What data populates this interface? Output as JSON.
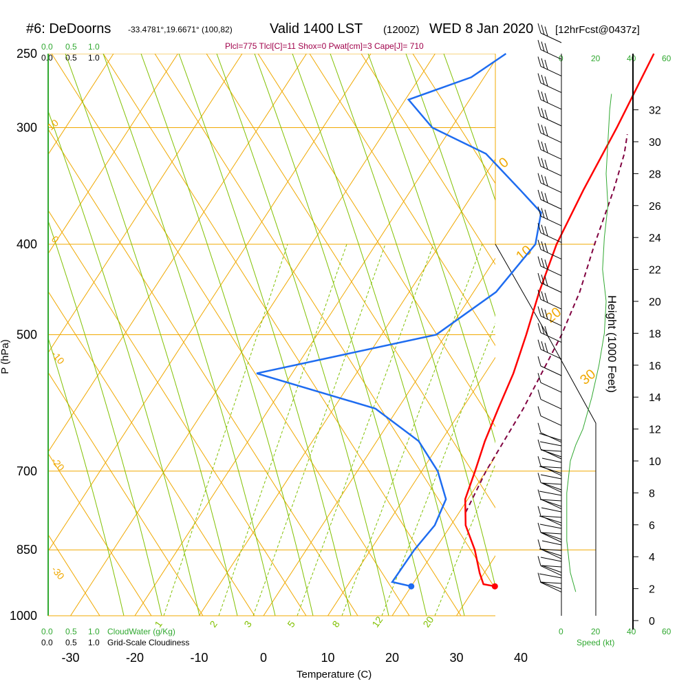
{
  "header": {
    "station": "#6: DeDoorns",
    "coords": "-33.4781°,19.6671° (100,82)",
    "valid": "Valid 1400 LST",
    "zulu": "(1200Z)",
    "date": "WED 8 Jan 2020",
    "fcst": "[12hrFcst@0437z]",
    "params": "Plcl=775 Tlcl[C]=11 Shox=0 Pwat[cm]=3 Cape[J]= 710"
  },
  "colors": {
    "isotherm": "#f0a800",
    "isobar": "#f0a800",
    "mixing": "#80c000",
    "temp": "#ff0000",
    "dew": "#1e6cf0",
    "parcel": "#800040",
    "green_label": "#30a830",
    "mix_label": "#80c000"
  },
  "scales": {
    "cloudwater_top": [
      "0.0",
      "0.5",
      "1.0"
    ],
    "cloudiness_top": [
      "0.0",
      "0.5",
      "1.0"
    ],
    "cloudwater_bottom": [
      "0.0",
      "0.5",
      "1.0"
    ],
    "cloudwater_label": "CloudWater (g/Kg)",
    "cloudiness_bottom": [
      "0.0",
      "0.5",
      "1.0"
    ],
    "cloudiness_label": "Grid-Scale Cloudiness",
    "speed_top": [
      "0",
      "20",
      "40",
      "60"
    ],
    "speed_bottom": [
      "0",
      "20",
      "40",
      "60"
    ],
    "speed_label": "Speed (kt)"
  },
  "chart_data": {
    "type": "skew-t",
    "title": "#6: DeDoorns Valid 1400 LST (1200Z) WED 8 Jan 2020",
    "xlabel": "Temperature (C)",
    "ylabel": "P (hPa)",
    "y2label": "Height (1000 Feet)",
    "xlim": [
      -35,
      47
    ],
    "ylim_hpa": [
      1000,
      250
    ],
    "x_ticks": [
      -30,
      -20,
      -10,
      0,
      10,
      20,
      30,
      40
    ],
    "p_ticks": [
      250,
      300,
      400,
      500,
      700,
      850,
      1000
    ],
    "height_ticks_kft": [
      0,
      2,
      4,
      6,
      8,
      10,
      12,
      14,
      16,
      18,
      20,
      22,
      24,
      26,
      28,
      30,
      32
    ],
    "isotherms_c": [
      -100,
      -90,
      -80,
      -70,
      -60,
      -50,
      -40,
      -30,
      -20,
      -10,
      0,
      10,
      20,
      30,
      40,
      50,
      60
    ],
    "isotherm_labels": [
      {
        "text": "10",
        "t": -10
      },
      {
        "text": "0",
        "t": 0
      },
      {
        "text": "10",
        "t": 10
      },
      {
        "text": "20",
        "t": 20
      },
      {
        "text": "30",
        "t": 30
      }
    ],
    "theta_labels": [
      "10",
      "0",
      "-10",
      "-20",
      "-30"
    ],
    "mixing_ratio_labels": [
      "1",
      "2",
      "3",
      "5",
      "8",
      "12",
      "20"
    ],
    "temperature": [
      {
        "p": 930,
        "t": 33.0
      },
      {
        "p": 925,
        "t": 31.0
      },
      {
        "p": 900,
        "t": 29.3
      },
      {
        "p": 850,
        "t": 26.2
      },
      {
        "p": 800,
        "t": 22.3
      },
      {
        "p": 750,
        "t": 19.6
      },
      {
        "p": 700,
        "t": 18.3
      },
      {
        "p": 650,
        "t": 16.8
      },
      {
        "p": 600,
        "t": 15.6
      },
      {
        "p": 550,
        "t": 14.4
      },
      {
        "p": 500,
        "t": 12.5
      },
      {
        "p": 450,
        "t": 10.2
      },
      {
        "p": 400,
        "t": 8.1
      },
      {
        "p": 350,
        "t": 6.8
      },
      {
        "p": 300,
        "t": 5.7
      },
      {
        "p": 250,
        "t": 4.0
      }
    ],
    "dewpoint": [
      {
        "p": 930,
        "t": 20.0
      },
      {
        "p": 920,
        "t": 16.6
      },
      {
        "p": 850,
        "t": 16.8
      },
      {
        "p": 800,
        "t": 17.5
      },
      {
        "p": 750,
        "t": 16.6
      },
      {
        "p": 700,
        "t": 12.5
      },
      {
        "p": 650,
        "t": 6.5
      },
      {
        "p": 600,
        "t": -3.5
      },
      {
        "p": 550,
        "t": -25.5
      },
      {
        "p": 500,
        "t": -1.5
      },
      {
        "p": 450,
        "t": 3.5
      },
      {
        "p": 400,
        "t": 4.8
      },
      {
        "p": 370,
        "t": 2.5
      },
      {
        "p": 350,
        "t": -3.0
      },
      {
        "p": 320,
        "t": -12.0
      },
      {
        "p": 300,
        "t": -23.0
      },
      {
        "p": 280,
        "t": -29.5
      },
      {
        "p": 265,
        "t": -22.0
      },
      {
        "p": 250,
        "t": -19.0
      }
    ],
    "parcel": [
      {
        "p": 775,
        "t": 21.0
      },
      {
        "p": 700,
        "t": 20.0
      },
      {
        "p": 600,
        "t": 19.5
      },
      {
        "p": 500,
        "t": 18.0
      },
      {
        "p": 450,
        "t": 16.5
      },
      {
        "p": 400,
        "t": 14.0
      },
      {
        "p": 350,
        "t": 11.5
      },
      {
        "p": 320,
        "t": 9.5
      },
      {
        "p": 305,
        "t": 8.0
      }
    ],
    "surface_temp_c": 33.0,
    "surface_dew_c": 20.0,
    "wind_speed_profile_kt": [
      {
        "kft": 1.8,
        "v": 8
      },
      {
        "kft": 3,
        "v": 5
      },
      {
        "kft": 5,
        "v": 3
      },
      {
        "kft": 8,
        "v": 3
      },
      {
        "kft": 10,
        "v": 5
      },
      {
        "kft": 11,
        "v": 8
      },
      {
        "kft": 12,
        "v": 12
      },
      {
        "kft": 14,
        "v": 17
      },
      {
        "kft": 16,
        "v": 21
      },
      {
        "kft": 18,
        "v": 24
      },
      {
        "kft": 20,
        "v": 25
      },
      {
        "kft": 22,
        "v": 23
      },
      {
        "kft": 24,
        "v": 24
      },
      {
        "kft": 26,
        "v": 26
      },
      {
        "kft": 28,
        "v": 25
      },
      {
        "kft": 30,
        "v": 26
      },
      {
        "kft": 32,
        "v": 27
      },
      {
        "kft": 33,
        "v": 28
      }
    ]
  }
}
